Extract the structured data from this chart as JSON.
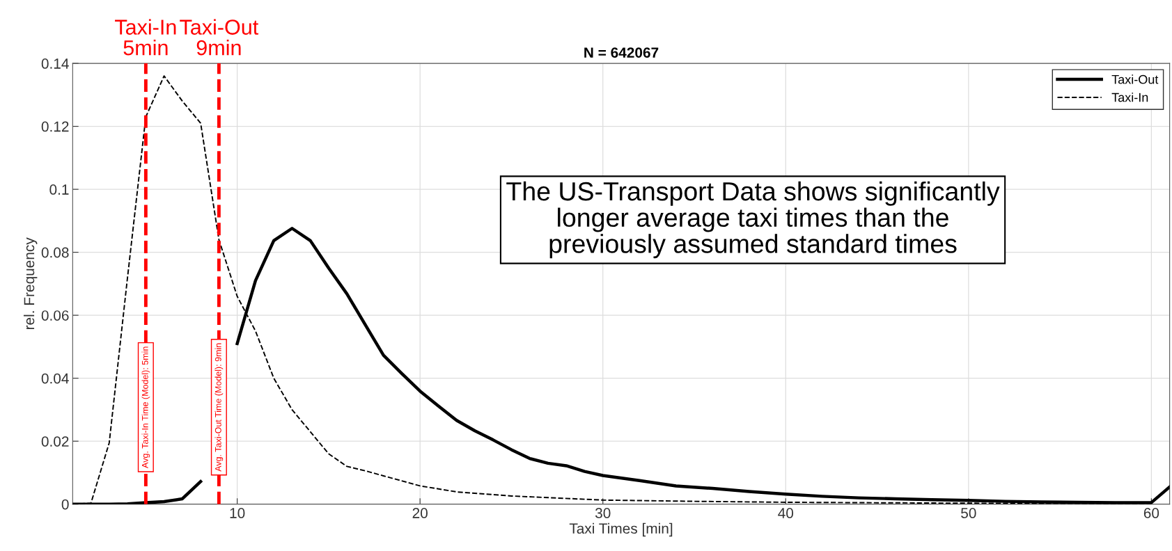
{
  "chart_data": {
    "type": "line",
    "title": "N = 642067",
    "xlabel": "Taxi Times [min]",
    "ylabel": "rel. Frequency",
    "xlim": [
      1,
      61
    ],
    "ylim": [
      0,
      0.14
    ],
    "xticks": [
      10,
      20,
      30,
      40,
      50,
      60
    ],
    "yticks": [
      0,
      0.02,
      0.04,
      0.06,
      0.08,
      0.1,
      0.12,
      0.14
    ],
    "grid": true,
    "legend": "top right",
    "series": [
      {
        "name": "Taxi-Out",
        "color": "#000000",
        "line_style": "solid",
        "x": [
          1,
          2,
          3,
          4,
          5,
          6,
          7,
          8,
          9,
          10,
          11,
          12,
          13,
          14,
          15,
          16,
          17,
          18,
          19,
          20,
          21,
          22,
          23,
          24,
          25,
          26,
          27,
          28,
          29,
          30,
          32,
          34,
          36,
          38,
          40,
          42,
          44,
          46,
          48,
          50,
          52,
          54,
          56,
          58,
          60,
          61
        ],
        "values": [
          0,
          0,
          0,
          0.0001,
          0.0005,
          0.0008,
          0.0017,
          0.0072,
          null,
          0.051,
          0.071,
          0.0837,
          0.0876,
          0.0837,
          0.075,
          0.0668,
          0.057,
          0.0473,
          0.0415,
          0.0359,
          0.0312,
          0.0266,
          0.0233,
          0.0204,
          0.0173,
          0.0145,
          0.013,
          0.0122,
          0.0104,
          0.0091,
          0.0075,
          0.0058,
          0.005,
          0.004,
          0.0032,
          0.0025,
          0.002,
          0.0017,
          0.0014,
          0.0012,
          0.0009,
          0.0007,
          0.0006,
          0.0005,
          0.0005,
          0.0055
        ]
      },
      {
        "name": "Taxi-In",
        "color": "#000000",
        "line_style": "dashed",
        "x": [
          1,
          2,
          3,
          4,
          5,
          6,
          7,
          8,
          9,
          10,
          11,
          12,
          13,
          14,
          15,
          16,
          17,
          18,
          20,
          22,
          25,
          30,
          35,
          40,
          50,
          60
        ],
        "values": [
          0,
          0.0003,
          0.0195,
          0.072,
          0.123,
          0.136,
          0.128,
          0.121,
          0.084,
          0.066,
          0.055,
          0.04,
          0.03,
          0.023,
          0.016,
          0.012,
          0.0106,
          0.009,
          0.0058,
          0.0039,
          0.0026,
          0.0013,
          0.0009,
          0.0006,
          0.0003,
          0.0002
        ]
      }
    ],
    "ref_lines": [
      {
        "axis": "x",
        "value": 5,
        "label": "Avg. Taxi-In Time (Model): 5min",
        "color": "#ff0000",
        "line_style": "dashed"
      },
      {
        "axis": "x",
        "value": 9,
        "label": "Avg. Taxi-Out Time (Model): 9min",
        "color": "#ff0000",
        "line_style": "dashed"
      }
    ],
    "annotations": [
      {
        "text": "Taxi-In\n5min",
        "x": 5,
        "y": 0.14
      },
      {
        "text": "Taxi-Out\n9min",
        "x": 9,
        "y": 0.14
      },
      "The US-Transport Data shows significantly\nlonger average taxi times than the\npreviously assumed standard times"
    ]
  }
}
